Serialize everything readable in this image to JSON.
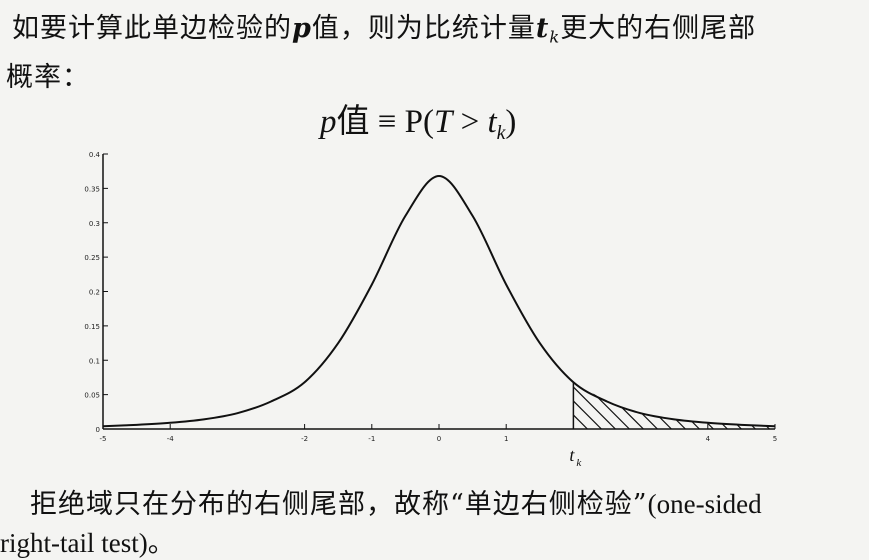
{
  "text": {
    "line1_a": "如要计算此单边检验的",
    "line1_p": "p",
    "line1_b": "值，则为比统计量",
    "line1_t": "t",
    "line1_k": "k",
    "line1_c": "更大的右侧尾部",
    "line2": "概率：",
    "formula_p": "p",
    "formula_rest": "值 ≡ P(",
    "formula_T": "T",
    "formula_gt": " > ",
    "formula_t": "t",
    "formula_k": "k",
    "formula_close": ")",
    "bottom1_a": "拒绝域只在分布的右侧尾部，故称“单边右侧检验”",
    "bottom1_b": "(one-sided",
    "bottom2_a": "right-tail test)",
    "bottom2_b": "。"
  },
  "chart_data": {
    "type": "line",
    "title": "",
    "xlabel": "",
    "ylabel": "",
    "xlim": [
      -5,
      5
    ],
    "ylim": [
      0,
      0.4
    ],
    "x_ticks": [
      -5,
      -4,
      -2,
      -1,
      0,
      1,
      4,
      5
    ],
    "y_ticks": [
      0,
      0.05,
      0.1,
      0.15,
      0.2,
      0.25,
      0.3,
      0.35,
      0.4
    ],
    "y_tick_labels": [
      "0",
      "0.05",
      "0.1",
      "0.15",
      "0.2",
      "0.25",
      "0.3",
      "0.35",
      "0.4"
    ],
    "series": [
      {
        "x": [
          -5,
          -4.5,
          -4,
          -3.5,
          -3,
          -2.5,
          -2,
          -1.5,
          -1,
          -0.5,
          0,
          0.5,
          1,
          1.5,
          2,
          2.5,
          3,
          3.5,
          4,
          4.5,
          5
        ],
        "values": [
          0.004,
          0.006,
          0.009,
          0.014,
          0.023,
          0.04,
          0.068,
          0.125,
          0.21,
          0.31,
          0.368,
          0.31,
          0.21,
          0.125,
          0.068,
          0.04,
          0.023,
          0.014,
          0.009,
          0.006,
          0.004
        ]
      }
    ],
    "shaded_region": {
      "from": 2,
      "to": 5,
      "pattern": "hatched"
    },
    "critical_label_t": "t",
    "critical_label_k": "k"
  }
}
